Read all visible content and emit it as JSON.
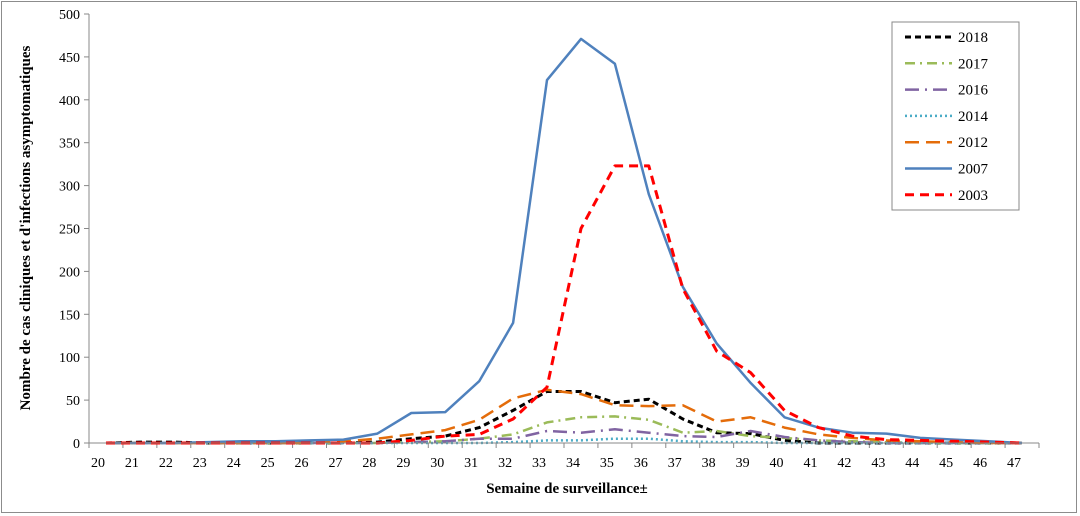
{
  "chart_data": {
    "type": "line",
    "title": "",
    "xlabel": "Semaine de surveillance±",
    "ylabel": "Nombre de cas cliniques et d'infections asymptomatiques",
    "x": [
      20,
      21,
      22,
      23,
      24,
      25,
      26,
      27,
      28,
      29,
      30,
      31,
      32,
      33,
      34,
      35,
      36,
      37,
      38,
      39,
      40,
      41,
      42,
      43,
      44,
      45,
      46,
      47
    ],
    "ylim": [
      0,
      500
    ],
    "yticks": [
      0,
      50,
      100,
      150,
      200,
      250,
      300,
      350,
      400,
      450,
      500
    ],
    "grid": false,
    "legend_position": "top-right",
    "series": [
      {
        "name": "2018",
        "color": "#000000",
        "dash": "6,4",
        "width": 3,
        "values": [
          0,
          1,
          1,
          0,
          0,
          0,
          0,
          0,
          1,
          5,
          8,
          18,
          38,
          60,
          60,
          47,
          51,
          28,
          12,
          11,
          3,
          0,
          0,
          0,
          0,
          0,
          0,
          0
        ]
      },
      {
        "name": "2017",
        "color": "#9bbb59",
        "dash": "10,5,2,5",
        "width": 2.5,
        "values": [
          0,
          0,
          0,
          0,
          0,
          0,
          0,
          0,
          0,
          1,
          2,
          5,
          10,
          24,
          30,
          31,
          27,
          12,
          14,
          8,
          6,
          3,
          2,
          1,
          0,
          0,
          0,
          0
        ]
      },
      {
        "name": "2016",
        "color": "#8064a2",
        "dash": "14,6,2,6",
        "width": 2.5,
        "values": [
          0,
          0,
          0,
          0,
          0,
          0,
          0,
          0,
          0,
          1,
          2,
          5,
          5,
          14,
          12,
          16,
          12,
          8,
          7,
          14,
          7,
          3,
          1,
          0,
          0,
          0,
          0,
          0
        ]
      },
      {
        "name": "2014",
        "color": "#4bacc6",
        "dash": "2,3",
        "width": 2.5,
        "values": [
          0,
          0,
          0,
          0,
          0,
          0,
          0,
          0,
          0,
          0,
          0,
          0,
          1,
          3,
          3,
          5,
          5,
          2,
          1,
          1,
          0,
          0,
          0,
          0,
          0,
          0,
          0,
          0
        ]
      },
      {
        "name": "2012",
        "color": "#e46c0a",
        "dash": "14,7",
        "width": 2.5,
        "values": [
          0,
          0,
          0,
          0,
          0,
          0,
          0,
          2,
          5,
          10,
          15,
          27,
          52,
          62,
          57,
          44,
          43,
          44,
          25,
          30,
          18,
          10,
          6,
          3,
          2,
          1,
          0,
          0
        ]
      },
      {
        "name": "2007",
        "color": "#4f81bd",
        "dash": "",
        "width": 2.5,
        "values": [
          0,
          0,
          0,
          1,
          2,
          2,
          3,
          4,
          11,
          35,
          36,
          72,
          140,
          423,
          471,
          442,
          290,
          182,
          116,
          70,
          30,
          18,
          12,
          11,
          6,
          4,
          2,
          0
        ]
      },
      {
        "name": "2003",
        "color": "#ff0000",
        "dash": "9,6",
        "width": 3,
        "values": [
          0,
          0,
          0,
          0,
          0,
          0,
          0,
          0,
          0,
          3,
          8,
          10,
          28,
          65,
          250,
          323,
          323,
          180,
          107,
          82,
          38,
          18,
          8,
          4,
          3,
          2,
          1,
          0
        ]
      }
    ]
  }
}
